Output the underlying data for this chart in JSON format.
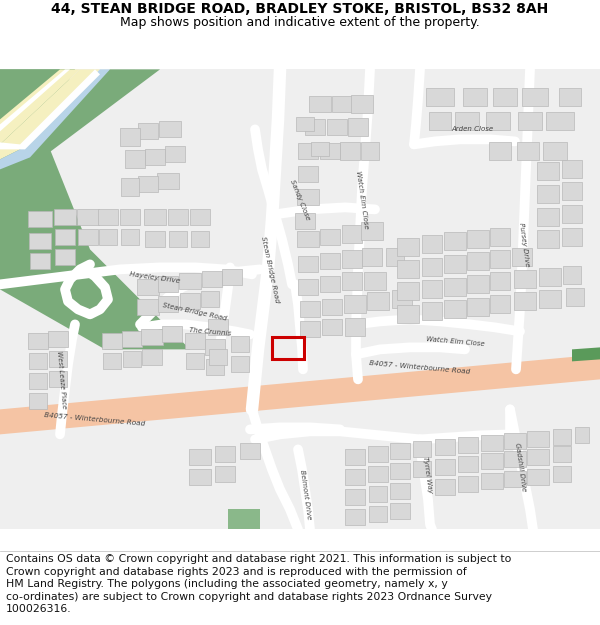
{
  "title_line1": "44, STEAN BRIDGE ROAD, BRADLEY STOKE, BRISTOL, BS32 8AH",
  "title_line2": "Map shows position and indicative extent of the property.",
  "footer_text": "Contains OS data © Crown copyright and database right 2021. This information is subject to Crown copyright and database rights 2023 and is reproduced with the permission of HM Land Registry. The polygons (including the associated geometry, namely x, y co-ordinates) are subject to Crown copyright and database rights 2023 Ordnance Survey 100026316.",
  "map_bg": "#efefef",
  "road_color": "#ffffff",
  "major_road_color": "#f5c4a4",
  "building_color": "#d8d8d8",
  "building_outline": "#b8b8b8",
  "plot_edgecolor": "#cc0000",
  "green_color": "#7aab7a",
  "green2_color": "#8ab88a",
  "water_color": "#b8d4e8",
  "yellow_color": "#f5f0c0",
  "title_fontsize": 10,
  "subtitle_fontsize": 9,
  "footer_fontsize": 7.8,
  "label_fontsize": 5.5,
  "label_color": "#444444"
}
